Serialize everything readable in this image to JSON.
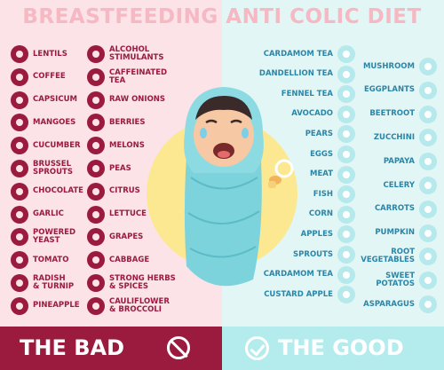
{
  "title": "BREASTFEEDING ANTI COLIC DIET",
  "footer": {
    "bad": "THE BAD",
    "good": "THE GOOD"
  },
  "bad_col1": [
    "LENTILS",
    "COFFEE",
    "CAPSICUM",
    "MANGOES",
    "CUCUMBER",
    "BRUSSEL\nSPROUTS",
    "CHOCOLATE",
    "GARLIC",
    "POWERED\nYEAST",
    "TOMATO",
    "RADISH\n& TURNIP",
    "PINEAPPLE"
  ],
  "bad_col2": [
    "ALCOHOL\nSTIMULANTS",
    "CAFFEINATED\nTEA",
    "RAW ONIONS",
    "BERRIES",
    "MELONS",
    "PEAS",
    "CITRUS",
    "LETTUCE",
    "GRAPES",
    "CABBAGE",
    "STRONG HERBS\n& SPICES",
    "CAULIFLOWER\n& BROCCOLI"
  ],
  "good_col1": [
    "CARDAMOM TEA",
    "DANDELLION TEA",
    "FENNEL TEA",
    "AVOCADO",
    "PEARS",
    "EGGS",
    "MEAT",
    "FISH",
    "CORN",
    "APPLES",
    "SPROUTS",
    "CARDAMOM TEA",
    "CUSTARD APPLE"
  ],
  "good_col2": [
    "MUSHROOM",
    "EGGPLANTS",
    "BEETROOT",
    "ZUCCHINI",
    "PAPAYA",
    "CELERY",
    "CARROTS",
    "PUMPKIN",
    "ROOT\nVEGETABLES",
    "SWEET\nPOTATOS",
    "ASPARAGUS"
  ],
  "icons": {
    "bad": "food-icon-maroon",
    "good": "food-icon-aqua"
  },
  "colors": {
    "bad": "#9a1b3d",
    "good": "#2a86a8",
    "bad_bg": "#fbe3e8",
    "good_bg": "#e3f6f6"
  }
}
